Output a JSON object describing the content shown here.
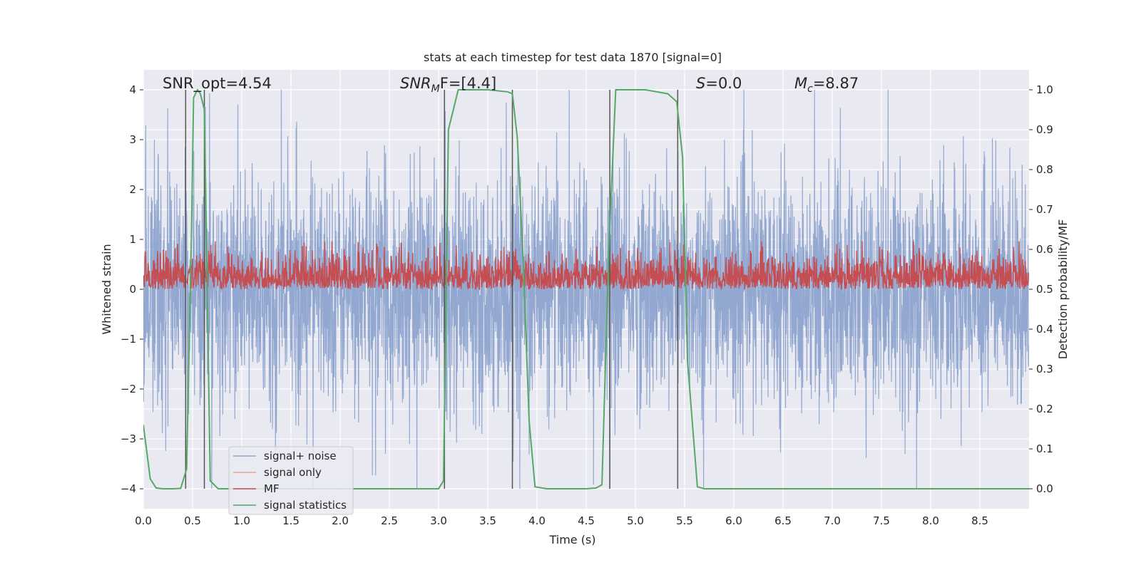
{
  "chart_data": {
    "type": "line",
    "title": "stats at each timestep for test data 1870 [signal=0]",
    "xlabel": "Time (s)",
    "ylabel": "Whitened strain",
    "y2label": "Detection probability/MF",
    "xlim": [
      0.0,
      9.0
    ],
    "ylim": [
      -4.4,
      4.4
    ],
    "y2lim": [
      -0.05,
      1.05
    ],
    "xticks": [
      "0.0",
      "0.5",
      "1.0",
      "1.5",
      "2.0",
      "2.5",
      "3.0",
      "3.5",
      "4.0",
      "4.5",
      "5.0",
      "5.5",
      "6.0",
      "6.5",
      "7.0",
      "7.5",
      "8.0",
      "8.5"
    ],
    "yticks": [
      "4",
      "3",
      "2",
      "1",
      "0",
      "−1",
      "−2",
      "−3",
      "−4"
    ],
    "y2ticks": [
      "1.0",
      "0.9",
      "0.8",
      "0.7",
      "0.6",
      "0.5",
      "0.4",
      "0.3",
      "0.2",
      "0.1",
      "0.0"
    ],
    "annotations": {
      "snr_opt": "SNR_opt=4.54",
      "snr_mf_name": "SNR",
      "snr_mf_sub": "M",
      "snr_mf_rest": "F=[4.4]",
      "s_name": "S",
      "s_rest": "=0.0",
      "mc_name": "M",
      "mc_sub": "c",
      "mc_rest": "=8.87"
    },
    "legend": {
      "location": "lower-left",
      "entries": [
        {
          "label": "signal+ noise",
          "color": "#8ea4cf"
        },
        {
          "label": "signal only",
          "color": "#e8a58a"
        },
        {
          "label": "MF",
          "color": "#c44e52"
        },
        {
          "label": "signal statistics",
          "color": "#55a868"
        }
      ]
    },
    "series": [
      {
        "name": "signal+ noise",
        "axis": "left",
        "description_x": [
          0,
          9
        ],
        "amplitude_range": [
          -4.0,
          4.0
        ],
        "color": "#8ea4cf"
      },
      {
        "name": "signal only",
        "axis": "left",
        "values": [],
        "color": "#e8a58a"
      },
      {
        "name": "MF",
        "axis": "right",
        "range": [
          0.5,
          0.6
        ],
        "color": "#c44e52"
      },
      {
        "name": "signal statistics",
        "axis": "right",
        "color": "#55a868",
        "x": [
          0.0,
          0.07,
          0.13,
          0.2,
          0.3,
          0.38,
          0.44,
          0.49,
          0.51,
          0.55,
          0.58,
          0.62,
          0.68,
          0.76,
          3.0,
          3.05,
          3.1,
          3.2,
          3.5,
          3.7,
          3.75,
          3.8,
          3.86,
          3.92,
          3.98,
          4.1,
          4.5,
          4.6,
          4.66,
          4.73,
          4.8,
          5.1,
          5.33,
          5.42,
          5.48,
          5.53,
          5.63,
          5.7,
          9.0
        ],
        "y": [
          0.16,
          0.025,
          0.002,
          0.0,
          0.0,
          0.001,
          0.05,
          0.65,
          0.98,
          1.0,
          0.99,
          0.95,
          0.02,
          0.0,
          0.0,
          0.02,
          0.9,
          1.0,
          1.0,
          0.995,
          0.99,
          0.88,
          0.57,
          0.17,
          0.005,
          0.0,
          0.0,
          0.002,
          0.01,
          0.6,
          1.0,
          1.0,
          0.99,
          0.97,
          0.83,
          0.32,
          0.005,
          0.0,
          0.0
        ]
      }
    ],
    "vlines": [
      0.43,
      0.62,
      3.06,
      3.75,
      4.74,
      5.43
    ]
  }
}
